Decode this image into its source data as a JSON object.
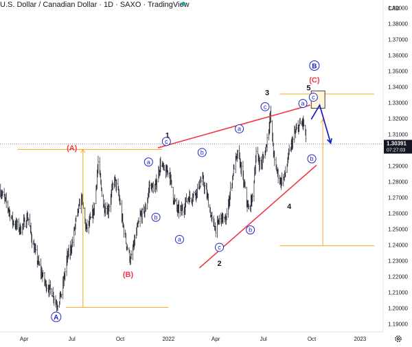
{
  "header": {
    "title": "U.S. Dollar / Canadian Dollar · 1D · SAXO · TradingView",
    "status_color": "#26a69a"
  },
  "chart_data": {
    "type": "candlestick",
    "title": "U.S. Dollar / Canadian Dollar · 1D · SAXO · TradingView",
    "currency": "CAD",
    "ylim": [
      1.185,
      1.395
    ],
    "y_ticks": [
      "1.39000",
      "1.38000",
      "1.37000",
      "1.36000",
      "1.35000",
      "1.34000",
      "1.33000",
      "1.32000",
      "1.31000",
      "1.30000",
      "1.29000",
      "1.28000",
      "1.27000",
      "1.26000",
      "1.25000",
      "1.24000",
      "1.23000",
      "1.22000",
      "1.21000",
      "1.20000",
      "1.19000"
    ],
    "x_ticks": [
      "Apr",
      "Jul",
      "Oct",
      "2022",
      "Apr",
      "Jul",
      "Oct",
      "2023"
    ],
    "x_range": [
      "2021-02-14",
      "2023-02-14"
    ],
    "x_tick_dates": [
      "2021-04-01",
      "2021-07-01",
      "2021-10-01",
      "2022-01-01",
      "2022-04-01",
      "2022-07-01",
      "2022-10-01",
      "2023-01-01"
    ],
    "last_price": "1.30391",
    "countdown": "07:27:03",
    "price_path": [
      [
        "2021-02-14",
        1.275
      ],
      [
        "2021-02-28",
        1.265
      ],
      [
        "2021-03-10",
        1.255
      ],
      [
        "2021-03-25",
        1.25
      ],
      [
        "2021-04-08",
        1.258
      ],
      [
        "2021-04-18",
        1.24
      ],
      [
        "2021-05-01",
        1.225
      ],
      [
        "2021-05-12",
        1.215
      ],
      [
        "2021-05-25",
        1.21
      ],
      [
        "2021-06-02",
        1.202
      ],
      [
        "2021-06-12",
        1.21
      ],
      [
        "2021-06-22",
        1.232
      ],
      [
        "2021-07-01",
        1.24
      ],
      [
        "2021-07-10",
        1.258
      ],
      [
        "2021-07-20",
        1.27
      ],
      [
        "2021-07-28",
        1.25
      ],
      [
        "2021-08-05",
        1.255
      ],
      [
        "2021-08-12",
        1.262
      ],
      [
        "2021-08-20",
        1.292
      ],
      [
        "2021-08-30",
        1.265
      ],
      [
        "2021-09-08",
        1.262
      ],
      [
        "2021-09-20",
        1.282
      ],
      [
        "2021-09-28",
        1.272
      ],
      [
        "2021-10-05",
        1.255
      ],
      [
        "2021-10-12",
        1.242
      ],
      [
        "2021-10-21",
        1.23
      ],
      [
        "2021-10-30",
        1.245
      ],
      [
        "2021-11-08",
        1.258
      ],
      [
        "2021-11-18",
        1.262
      ],
      [
        "2021-11-26",
        1.278
      ],
      [
        "2021-12-06",
        1.275
      ],
      [
        "2021-12-17",
        1.292
      ],
      [
        "2021-12-26",
        1.285
      ],
      [
        "2022-01-02",
        1.288
      ],
      [
        "2022-01-10",
        1.27
      ],
      [
        "2022-01-18",
        1.262
      ],
      [
        "2022-01-28",
        1.262
      ],
      [
        "2022-02-06",
        1.27
      ],
      [
        "2022-02-14",
        1.27
      ],
      [
        "2022-02-25",
        1.275
      ],
      [
        "2022-03-06",
        1.282
      ],
      [
        "2022-03-15",
        1.272
      ],
      [
        "2022-03-25",
        1.255
      ],
      [
        "2022-04-02",
        1.25
      ],
      [
        "2022-04-10",
        1.258
      ],
      [
        "2022-04-20",
        1.255
      ],
      [
        "2022-04-28",
        1.272
      ],
      [
        "2022-05-06",
        1.29
      ],
      [
        "2022-05-14",
        1.298
      ],
      [
        "2022-05-24",
        1.28
      ],
      [
        "2022-06-02",
        1.262
      ],
      [
        "2022-06-10",
        1.27
      ],
      [
        "2022-06-17",
        1.298
      ],
      [
        "2022-06-26",
        1.29
      ],
      [
        "2022-07-05",
        1.3
      ],
      [
        "2022-07-14",
        1.322
      ],
      [
        "2022-07-22",
        1.292
      ],
      [
        "2022-08-02",
        1.28
      ],
      [
        "2022-08-10",
        1.283
      ],
      [
        "2022-08-19",
        1.298
      ],
      [
        "2022-08-29",
        1.31
      ],
      [
        "2022-09-06",
        1.315
      ],
      [
        "2022-09-14",
        1.318
      ],
      [
        "2022-09-20",
        1.308
      ]
    ],
    "series": [
      {
        "name": "USDCAD",
        "color": "#131722"
      },
      {
        "name": "resistance line",
        "color": "#f23645"
      },
      {
        "name": "support line",
        "color": "#f23645"
      },
      {
        "name": "fib levels",
        "color": "#f5a623"
      },
      {
        "name": "projection",
        "color": "#1e22c7"
      }
    ],
    "annotations": [
      {
        "text": "(A)",
        "date": "2021-07-01",
        "price": 1.3015,
        "style": "red-bold"
      },
      {
        "text": "(B)",
        "date": "2021-10-16",
        "price": 1.2215,
        "style": "red-bold"
      },
      {
        "text": "(C)",
        "date": "2022-10-06",
        "price": 1.3445,
        "style": "red-bold"
      },
      {
        "text": "A",
        "date": "2021-06-01",
        "price": 1.1945,
        "style": "blue-circle"
      },
      {
        "text": "B",
        "date": "2022-10-06",
        "price": 1.3535,
        "style": "blue-circle"
      },
      {
        "text": "1",
        "date": "2021-12-30",
        "price": 1.3095,
        "style": "black-bold"
      },
      {
        "text": "2",
        "date": "2022-04-08",
        "price": 1.2285,
        "style": "black-bold"
      },
      {
        "text": "3",
        "date": "2022-07-08",
        "price": 1.3365,
        "style": "black-bold"
      },
      {
        "text": "4",
        "date": "2022-08-19",
        "price": 1.2645,
        "style": "black-bold"
      },
      {
        "text": "5",
        "date": "2022-09-25",
        "price": 1.3395,
        "style": "black-bold"
      },
      {
        "text": "a",
        "date": "2021-11-24",
        "price": 1.2925,
        "style": "blue-circle-small"
      },
      {
        "text": "b",
        "date": "2021-12-08",
        "price": 1.2575,
        "style": "blue-circle-small"
      },
      {
        "text": "c",
        "date": "2021-12-28",
        "price": 1.3055,
        "style": "blue-circle-small"
      },
      {
        "text": "a",
        "date": "2022-01-22",
        "price": 1.2435,
        "style": "blue-circle-small"
      },
      {
        "text": "b",
        "date": "2022-03-06",
        "price": 1.2985,
        "style": "blue-circle-small"
      },
      {
        "text": "c",
        "date": "2022-04-08",
        "price": 1.2385,
        "style": "blue-circle-small"
      },
      {
        "text": "a",
        "date": "2022-05-16",
        "price": 1.3135,
        "style": "blue-circle-small"
      },
      {
        "text": "b",
        "date": "2022-06-06",
        "price": 1.2495,
        "style": "blue-circle-small"
      },
      {
        "text": "c",
        "date": "2022-07-04",
        "price": 1.3275,
        "style": "blue-circle-small"
      },
      {
        "text": "a",
        "date": "2022-09-14",
        "price": 1.3295,
        "style": "blue-circle-small"
      },
      {
        "text": "b",
        "date": "2022-10-01",
        "price": 1.2945,
        "style": "blue-circle-small"
      },
      {
        "text": "c",
        "date": "2022-10-04",
        "price": 1.3335,
        "style": "blue-circle-small"
      }
    ],
    "trendlines": [
      {
        "name": "upper-wedge-line",
        "from": [
          "2021-12-12",
          1.3015
        ],
        "to": [
          "2022-09-28",
          1.3285
        ],
        "color": "#f23645"
      },
      {
        "name": "lower-wedge-line",
        "from": [
          "2022-03-01",
          1.2255
        ],
        "to": [
          "2022-10-10",
          1.2905
        ],
        "color": "#f23645"
      }
    ],
    "levels": [
      {
        "name": "level-a-top",
        "from": "2021-03-20",
        "to": "2021-12-20",
        "price": 1.3005,
        "color": "#f5a623"
      },
      {
        "name": "level-a-bottom",
        "from": "2021-06-20",
        "to": "2022-01-01",
        "price": 1.2005,
        "color": "#f5a623"
      },
      {
        "name": "level-c-top",
        "from": "2022-08-01",
        "to": "2023-01-28",
        "price": 1.3355,
        "color": "#f5a623"
      },
      {
        "name": "level-c-bottom",
        "from": "2022-08-01",
        "to": "2023-01-28",
        "price": 1.2395,
        "color": "#f5a623"
      }
    ],
    "projection_path": [
      [
        "2022-09-30",
        1.3195
      ],
      [
        "2022-10-16",
        1.3285
      ],
      [
        "2022-11-06",
        1.3045
      ]
    ],
    "target_box": {
      "from": "2022-09-30",
      "to": "2022-10-26",
      "price_top": 1.3375,
      "price_bottom": 1.3265
    },
    "grid": false,
    "legend": "none"
  }
}
